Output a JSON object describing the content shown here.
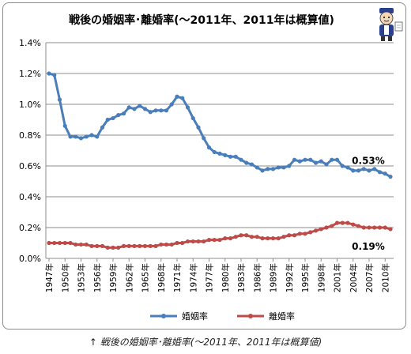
{
  "chart_data": {
    "type": "line",
    "title": "戦後の婚姻率･離婚率(〜2011年、2011年は概算値)",
    "xlabel": "",
    "ylabel": "",
    "ylim": [
      0,
      1.4
    ],
    "yticks": [
      "0.0%",
      "0.2%",
      "0.4%",
      "0.6%",
      "0.8%",
      "1.0%",
      "1.2%",
      "1.4%"
    ],
    "x": [
      1947,
      1948,
      1949,
      1950,
      1951,
      1952,
      1953,
      1954,
      1955,
      1956,
      1957,
      1958,
      1959,
      1960,
      1961,
      1962,
      1963,
      1964,
      1965,
      1966,
      1967,
      1968,
      1969,
      1970,
      1971,
      1972,
      1973,
      1974,
      1975,
      1976,
      1977,
      1978,
      1979,
      1980,
      1981,
      1982,
      1983,
      1984,
      1985,
      1986,
      1987,
      1988,
      1989,
      1990,
      1991,
      1992,
      1993,
      1994,
      1995,
      1996,
      1997,
      1998,
      1999,
      2000,
      2001,
      2002,
      2003,
      2004,
      2005,
      2006,
      2007,
      2008,
      2009,
      2010,
      2011
    ],
    "xtick_labels": [
      "1947年",
      "1950年",
      "1953年",
      "1956年",
      "1959年",
      "1962年",
      "1965年",
      "1968年",
      "1971年",
      "1974年",
      "1977年",
      "1980年",
      "1983年",
      "1986年",
      "1989年",
      "1992年",
      "1995年",
      "1998年",
      "2001年",
      "2004年",
      "2007年",
      "2010年"
    ],
    "grid": "horizontal",
    "legend": "bottom",
    "series": [
      {
        "name": "婚姻率",
        "color": "#4a7ebb",
        "values": [
          1.2,
          1.19,
          1.03,
          0.86,
          0.79,
          0.79,
          0.78,
          0.79,
          0.8,
          0.79,
          0.85,
          0.9,
          0.91,
          0.93,
          0.94,
          0.98,
          0.97,
          0.99,
          0.97,
          0.95,
          0.96,
          0.96,
          0.96,
          1.0,
          1.05,
          1.04,
          0.98,
          0.91,
          0.85,
          0.78,
          0.72,
          0.69,
          0.68,
          0.67,
          0.66,
          0.66,
          0.64,
          0.62,
          0.61,
          0.59,
          0.57,
          0.58,
          0.58,
          0.59,
          0.59,
          0.6,
          0.64,
          0.63,
          0.64,
          0.64,
          0.62,
          0.63,
          0.61,
          0.64,
          0.64,
          0.6,
          0.59,
          0.57,
          0.57,
          0.58,
          0.57,
          0.58,
          0.56,
          0.55,
          0.53
        ]
      },
      {
        "name": "離婚率",
        "color": "#be4b48",
        "values": [
          0.1,
          0.1,
          0.1,
          0.1,
          0.1,
          0.09,
          0.09,
          0.09,
          0.08,
          0.08,
          0.08,
          0.07,
          0.07,
          0.07,
          0.08,
          0.08,
          0.08,
          0.08,
          0.08,
          0.08,
          0.08,
          0.09,
          0.09,
          0.09,
          0.1,
          0.1,
          0.11,
          0.11,
          0.11,
          0.11,
          0.12,
          0.12,
          0.12,
          0.13,
          0.13,
          0.14,
          0.15,
          0.15,
          0.14,
          0.14,
          0.13,
          0.13,
          0.13,
          0.13,
          0.14,
          0.15,
          0.15,
          0.16,
          0.16,
          0.17,
          0.18,
          0.19,
          0.2,
          0.21,
          0.23,
          0.23,
          0.23,
          0.22,
          0.21,
          0.2,
          0.2,
          0.2,
          0.2,
          0.2,
          0.19
        ]
      }
    ],
    "annotations": [
      {
        "text": "0.53%",
        "series": 0,
        "x": 2011
      },
      {
        "text": "0.19%",
        "series": 1,
        "x": 2011
      }
    ]
  },
  "caption": "↑ 戦後の婚姻率･離婚率(〜2011年、2011年は概算値)",
  "mascot_icon": "character-mascot-icon"
}
